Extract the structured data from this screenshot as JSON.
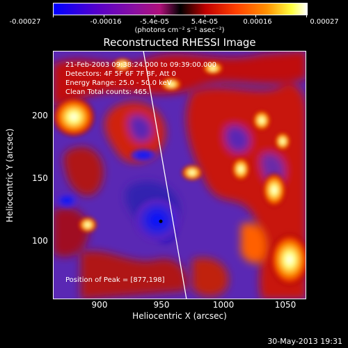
{
  "colorbar": {
    "tick_labels": [
      "-0.00027",
      "-0.00016",
      "-5.4e-05",
      "5.4e-05",
      "0.00016",
      "0.00027"
    ],
    "units_label": "(photons cm⁻² s⁻¹ asec⁻²)"
  },
  "title": "Reconstructed RHESSI Image",
  "info": {
    "time": "21-Feb-2003 09:38:24.000 to 09:39:00.000",
    "detectors": "Detectors: 4F 5F 6F 7F 8F, Att 0",
    "energy": "Energy Range: 25.0 - 50.0 keV",
    "clean": "Clean    Total counts: 465.",
    "peak": "Position of Peak = [877,198]"
  },
  "axes": {
    "xlabel": "Heliocentric X (arcsec)",
    "ylabel": "Heliocentric Y (arcsec)",
    "x_ticks": [
      "900",
      "950",
      "1000",
      "1050"
    ],
    "y_ticks": [
      "100",
      "150",
      "200"
    ]
  },
  "footer": "30-May-2013 19:31",
  "colors": {
    "background": "#000000",
    "text": "#ffffff"
  }
}
